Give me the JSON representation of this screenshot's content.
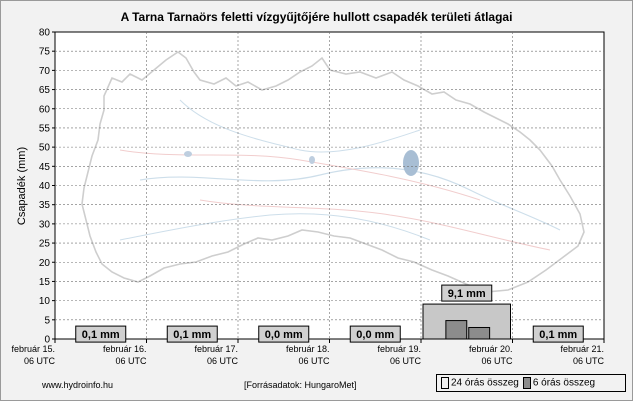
{
  "colors": {
    "background": "#f2f2f2",
    "bar24": "#c8c8c8",
    "bar6": "#8c8c8c",
    "label_box": "#d0d0d0"
  },
  "footer": {
    "source": "www.hydroinfo.hu",
    "data_source": "[Forrásadatok: HungaroMet]"
  },
  "legend": {
    "daily_label": "24 órás összeg",
    "sixhour_label": "6 órás összeg"
  },
  "chart_data": {
    "type": "bar",
    "title": "A Tarna Tarnaörs feletti vízgyűjtőjére hullott csapadék területi átlagai",
    "ylabel": "Csapadék (mm)",
    "xlabel": "",
    "ylim": [
      0,
      80
    ],
    "yticks": [
      0,
      5,
      10,
      15,
      20,
      25,
      30,
      35,
      40,
      45,
      50,
      55,
      60,
      65,
      70,
      75,
      80
    ],
    "grid": true,
    "legend_position": "bottom-right",
    "x_tick_labels": [
      [
        "február 15.",
        "06 UTC"
      ],
      [
        "február 16.",
        "06 UTC"
      ],
      [
        "február 17.",
        "06 UTC"
      ],
      [
        "február 18.",
        "06 UTC"
      ],
      [
        "február 19.",
        "06 UTC"
      ],
      [
        "február 20.",
        "06 UTC"
      ],
      [
        "február 21.",
        "06 UTC"
      ]
    ],
    "daily_totals": [
      {
        "day_index": 0,
        "value": 0.1,
        "label": "0,1 mm"
      },
      {
        "day_index": 1,
        "value": 0.1,
        "label": "0,1 mm"
      },
      {
        "day_index": 2,
        "value": 0.0,
        "label": "0,0 mm"
      },
      {
        "day_index": 3,
        "value": 0.0,
        "label": "0,0 mm"
      },
      {
        "day_index": 4,
        "value": 9.1,
        "label": "9,1 mm"
      },
      {
        "day_index": 5,
        "value": 0.1,
        "label": "0,1 mm"
      }
    ],
    "six_hour_totals": [
      {
        "day_index": 4,
        "slot": 1,
        "value": 4.8
      },
      {
        "day_index": 4,
        "slot": 2,
        "value": 3.0
      }
    ]
  }
}
